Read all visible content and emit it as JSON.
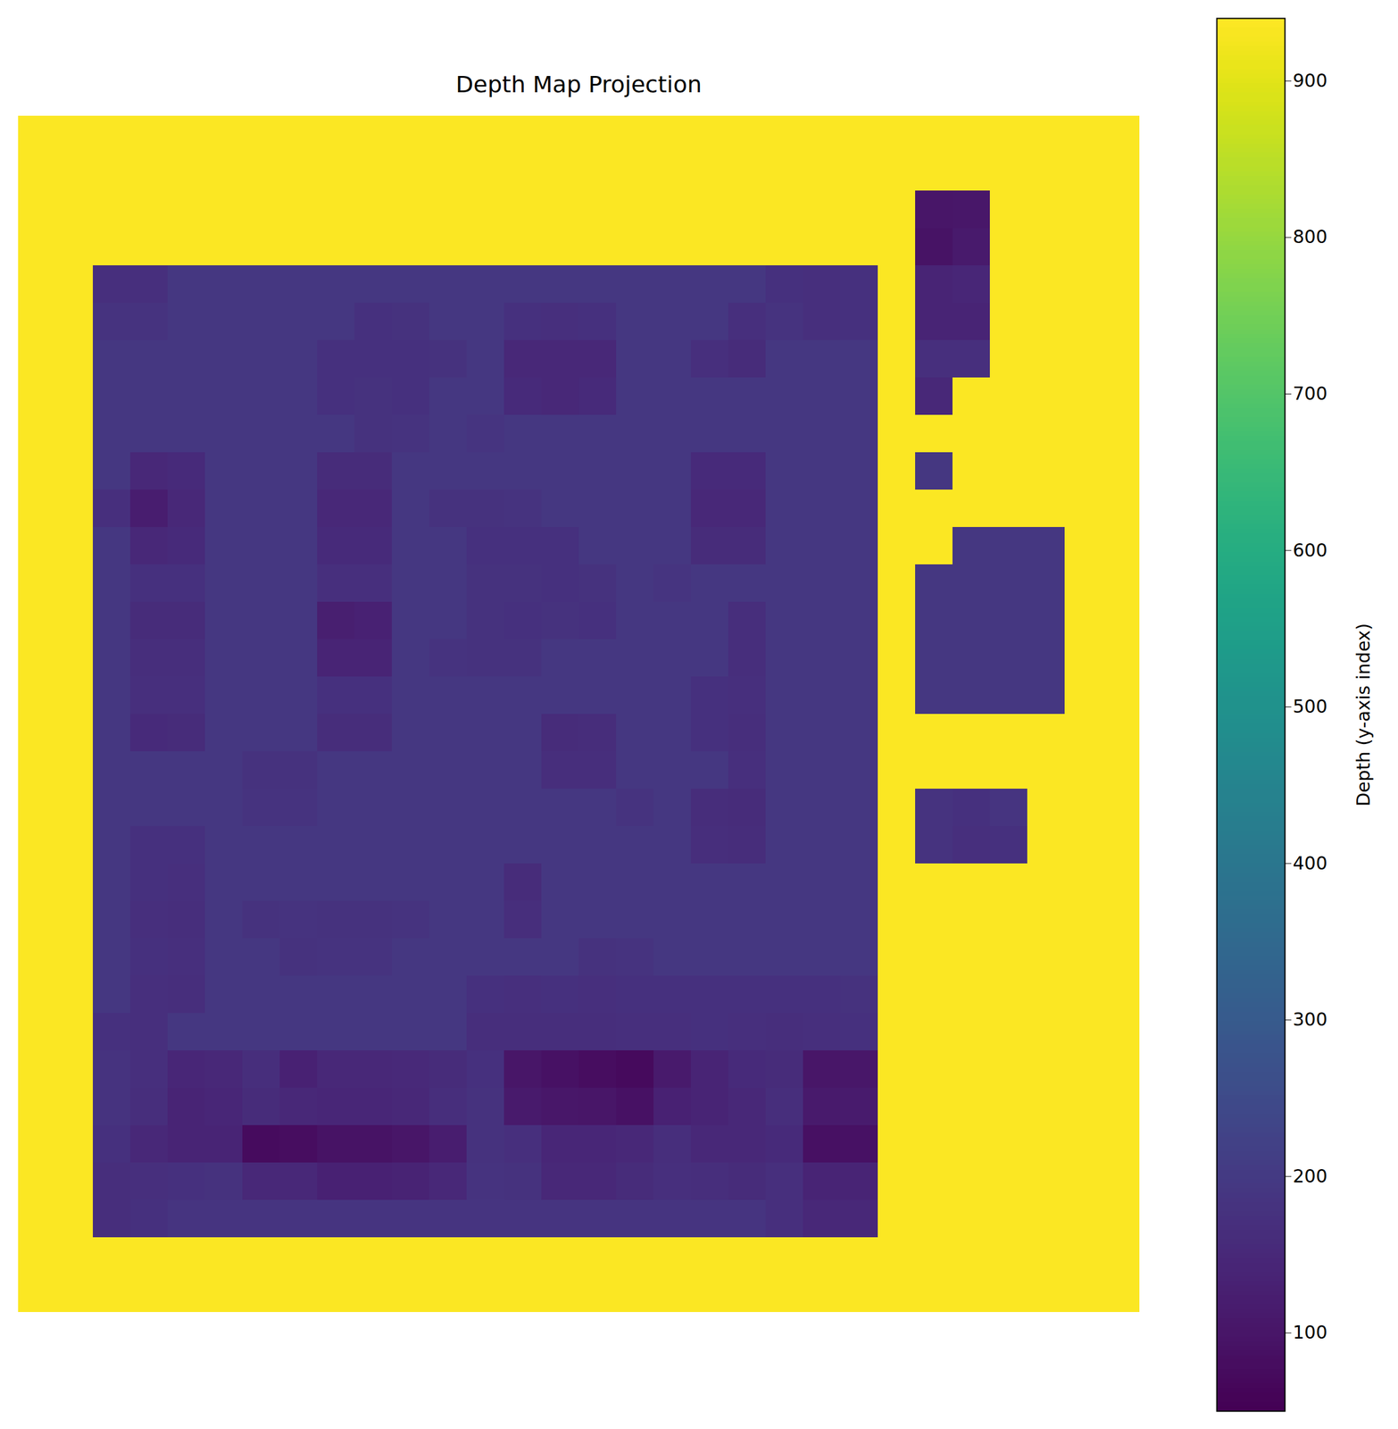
{
  "chart_data": {
    "type": "heatmap",
    "title": "Depth Map Projection",
    "tick_labels": false,
    "cells": [
      [
        935,
        935,
        935,
        935,
        935,
        935,
        935,
        935,
        935,
        935,
        935,
        935,
        935,
        935,
        935,
        935,
        935,
        935,
        935,
        935,
        935,
        935,
        935,
        935,
        935,
        935,
        935,
        935,
        935,
        935
      ],
      [
        935,
        935,
        935,
        935,
        935,
        935,
        935,
        935,
        935,
        935,
        935,
        935,
        935,
        935,
        935,
        935,
        935,
        935,
        935,
        935,
        935,
        935,
        935,
        935,
        935,
        935,
        935,
        935,
        935,
        935
      ],
      [
        935,
        935,
        935,
        935,
        935,
        935,
        935,
        935,
        935,
        935,
        935,
        935,
        935,
        935,
        935,
        935,
        935,
        935,
        935,
        935,
        935,
        935,
        935,
        935,
        100,
        105,
        935,
        935,
        935,
        935
      ],
      [
        935,
        935,
        935,
        935,
        935,
        935,
        935,
        935,
        935,
        935,
        935,
        935,
        935,
        935,
        935,
        935,
        935,
        935,
        935,
        935,
        935,
        935,
        935,
        935,
        95,
        110,
        935,
        935,
        935,
        935
      ],
      [
        935,
        935,
        170,
        170,
        190,
        190,
        190,
        190,
        190,
        190,
        190,
        190,
        190,
        190,
        190,
        190,
        190,
        190,
        190,
        190,
        175,
        170,
        175,
        935,
        140,
        145,
        935,
        935,
        935,
        935
      ],
      [
        935,
        935,
        180,
        180,
        190,
        190,
        190,
        190,
        190,
        175,
        178,
        190,
        190,
        175,
        170,
        175,
        190,
        190,
        190,
        170,
        180,
        170,
        175,
        935,
        140,
        140,
        935,
        935,
        935,
        935
      ],
      [
        935,
        935,
        190,
        190,
        190,
        190,
        190,
        190,
        175,
        175,
        175,
        178,
        190,
        150,
        148,
        150,
        190,
        190,
        170,
        160,
        190,
        190,
        190,
        935,
        170,
        170,
        935,
        935,
        935,
        935
      ],
      [
        935,
        935,
        190,
        190,
        190,
        190,
        190,
        190,
        175,
        178,
        175,
        190,
        190,
        155,
        150,
        155,
        190,
        190,
        190,
        190,
        190,
        190,
        190,
        935,
        150,
        935,
        935,
        935,
        935,
        935
      ],
      [
        935,
        935,
        190,
        190,
        190,
        190,
        190,
        190,
        190,
        178,
        180,
        190,
        185,
        190,
        190,
        190,
        190,
        190,
        190,
        190,
        190,
        190,
        190,
        935,
        935,
        935,
        935,
        935,
        935,
        935
      ],
      [
        935,
        935,
        190,
        150,
        155,
        190,
        190,
        190,
        160,
        160,
        190,
        190,
        190,
        190,
        190,
        190,
        190,
        190,
        155,
        155,
        190,
        190,
        190,
        935,
        190,
        935,
        935,
        935,
        935,
        935
      ],
      [
        935,
        935,
        170,
        120,
        150,
        190,
        190,
        190,
        150,
        150,
        190,
        178,
        178,
        180,
        190,
        190,
        190,
        190,
        150,
        150,
        190,
        190,
        190,
        935,
        935,
        935,
        935,
        935,
        935,
        935
      ],
      [
        935,
        935,
        190,
        150,
        155,
        190,
        190,
        190,
        155,
        155,
        190,
        190,
        175,
        175,
        175,
        190,
        190,
        190,
        160,
        160,
        190,
        190,
        190,
        935,
        935,
        190,
        190,
        190,
        935,
        935
      ],
      [
        935,
        935,
        190,
        175,
        175,
        190,
        190,
        190,
        170,
        170,
        190,
        190,
        178,
        176,
        175,
        176,
        190,
        185,
        190,
        190,
        190,
        190,
        190,
        935,
        190,
        190,
        190,
        190,
        935,
        935
      ],
      [
        935,
        935,
        190,
        160,
        160,
        190,
        190,
        190,
        125,
        130,
        190,
        190,
        178,
        175,
        176,
        175,
        190,
        190,
        190,
        165,
        190,
        190,
        190,
        935,
        190,
        190,
        190,
        190,
        935,
        935
      ],
      [
        935,
        935,
        190,
        168,
        168,
        190,
        190,
        190,
        140,
        140,
        190,
        180,
        178,
        178,
        190,
        190,
        190,
        190,
        190,
        165,
        190,
        190,
        190,
        935,
        190,
        190,
        190,
        190,
        935,
        935
      ],
      [
        935,
        935,
        190,
        170,
        170,
        190,
        190,
        190,
        172,
        172,
        190,
        190,
        190,
        190,
        190,
        190,
        190,
        190,
        175,
        170,
        190,
        190,
        190,
        935,
        190,
        190,
        190,
        190,
        935,
        935
      ],
      [
        935,
        935,
        190,
        155,
        158,
        190,
        190,
        190,
        162,
        162,
        190,
        190,
        190,
        190,
        160,
        162,
        190,
        190,
        172,
        168,
        190,
        190,
        190,
        935,
        935,
        935,
        935,
        935,
        935,
        935
      ],
      [
        935,
        935,
        190,
        190,
        190,
        190,
        178,
        178,
        190,
        190,
        190,
        190,
        190,
        190,
        165,
        168,
        190,
        190,
        190,
        170,
        190,
        190,
        190,
        935,
        935,
        935,
        935,
        935,
        935,
        935
      ],
      [
        935,
        935,
        190,
        190,
        190,
        190,
        180,
        180,
        190,
        190,
        190,
        190,
        190,
        190,
        190,
        190,
        180,
        190,
        162,
        160,
        190,
        190,
        190,
        935,
        180,
        175,
        185,
        935,
        935,
        935
      ],
      [
        935,
        935,
        190,
        175,
        172,
        190,
        190,
        190,
        190,
        190,
        190,
        190,
        190,
        190,
        190,
        190,
        190,
        190,
        165,
        162,
        190,
        190,
        190,
        935,
        180,
        170,
        175,
        935,
        935,
        935
      ],
      [
        935,
        935,
        190,
        172,
        170,
        190,
        190,
        190,
        190,
        190,
        190,
        190,
        190,
        160,
        190,
        190,
        190,
        190,
        190,
        190,
        190,
        190,
        190,
        935,
        935,
        935,
        935,
        935,
        935,
        935
      ],
      [
        935,
        935,
        190,
        170,
        168,
        190,
        178,
        180,
        178,
        178,
        180,
        190,
        190,
        165,
        190,
        190,
        190,
        190,
        190,
        190,
        190,
        190,
        190,
        935,
        935,
        935,
        935,
        935,
        935,
        935
      ],
      [
        935,
        935,
        190,
        172,
        170,
        190,
        190,
        178,
        180,
        180,
        190,
        190,
        190,
        190,
        190,
        178,
        180,
        190,
        190,
        190,
        190,
        190,
        190,
        935,
        935,
        935,
        935,
        935,
        935,
        935
      ],
      [
        935,
        935,
        190,
        170,
        168,
        190,
        190,
        190,
        190,
        190,
        190,
        190,
        172,
        170,
        172,
        170,
        172,
        175,
        175,
        175,
        175,
        175,
        178,
        935,
        935,
        935,
        935,
        935,
        935,
        935
      ],
      [
        935,
        935,
        175,
        170,
        190,
        190,
        190,
        190,
        190,
        190,
        190,
        190,
        168,
        165,
        168,
        165,
        170,
        170,
        172,
        170,
        168,
        170,
        172,
        935,
        935,
        935,
        935,
        935,
        935,
        935
      ],
      [
        935,
        935,
        182,
        170,
        145,
        150,
        165,
        130,
        150,
        150,
        152,
        160,
        175,
        100,
        90,
        80,
        72,
        110,
        140,
        155,
        160,
        100,
        105,
        935,
        935,
        935,
        935,
        935,
        935,
        935
      ],
      [
        935,
        935,
        180,
        165,
        140,
        145,
        160,
        150,
        145,
        145,
        150,
        165,
        178,
        110,
        105,
        100,
        90,
        130,
        140,
        150,
        165,
        110,
        115,
        935,
        935,
        935,
        935,
        935,
        935,
        935
      ],
      [
        935,
        935,
        175,
        150,
        140,
        140,
        75,
        80,
        95,
        95,
        100,
        120,
        178,
        170,
        145,
        145,
        150,
        165,
        150,
        150,
        155,
        85,
        90,
        935,
        935,
        935,
        935,
        935,
        935,
        935
      ],
      [
        935,
        935,
        165,
        170,
        175,
        178,
        150,
        150,
        130,
        130,
        135,
        150,
        180,
        178,
        150,
        150,
        160,
        170,
        165,
        160,
        170,
        140,
        140,
        935,
        935,
        935,
        935,
        935,
        935,
        935
      ],
      [
        935,
        935,
        165,
        175,
        185,
        185,
        185,
        185,
        185,
        185,
        185,
        185,
        185,
        185,
        185,
        185,
        185,
        185,
        185,
        185,
        170,
        150,
        150,
        935,
        935,
        935,
        935,
        935,
        935,
        935
      ],
      [
        935,
        935,
        935,
        935,
        935,
        935,
        935,
        935,
        935,
        935,
        935,
        935,
        935,
        935,
        935,
        935,
        935,
        935,
        935,
        935,
        935,
        935,
        935,
        935,
        935,
        935,
        935,
        935,
        935,
        935
      ],
      [
        935,
        935,
        935,
        935,
        935,
        935,
        935,
        935,
        935,
        935,
        935,
        935,
        935,
        935,
        935,
        935,
        935,
        935,
        935,
        935,
        935,
        935,
        935,
        935,
        935,
        935,
        935,
        935,
        935,
        935
      ]
    ],
    "colorbar": {
      "label": "Depth (y-axis index)",
      "range": [
        50,
        940
      ],
      "ticks": [
        100,
        200,
        300,
        400,
        500,
        600,
        700,
        800,
        900
      ]
    }
  }
}
